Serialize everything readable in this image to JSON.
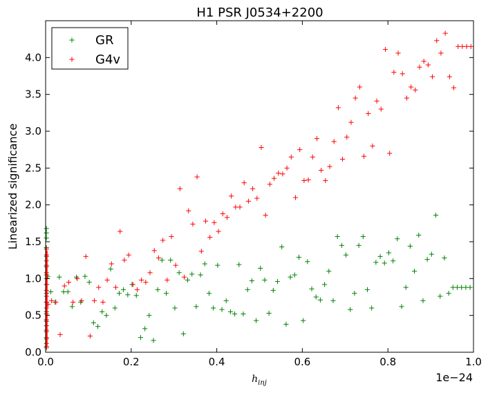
{
  "chart_data": {
    "type": "scatter",
    "title": "H1 PSR J0534+2200",
    "xlabel": "h",
    "xlabel_sub": "inj",
    "ylabel": "Linearized significance",
    "x_offset_label": "1e−24",
    "xlim": [
      0.0,
      1.0
    ],
    "ylim": [
      0.0,
      4.5
    ],
    "x_ticks": [
      "0.0",
      "0.2",
      "0.4",
      "0.6",
      "0.8",
      "1.0"
    ],
    "y_ticks": [
      "0.0",
      "0.5",
      "1.0",
      "1.5",
      "2.0",
      "2.5",
      "3.0",
      "3.5",
      "4.0"
    ],
    "legend_position": "top-left",
    "marker": "plus",
    "series": [
      {
        "name": "GR",
        "color": "#008000",
        "x": [
          0.005,
          0.012,
          0.022,
          0.032,
          0.042,
          0.052,
          0.062,
          0.072,
          0.082,
          0.092,
          0.102,
          0.112,
          0.122,
          0.132,
          0.142,
          0.152,
          0.162,
          0.172,
          0.182,
          0.192,
          0.202,
          0.212,
          0.222,
          0.232,
          0.242,
          0.252,
          0.262,
          0.272,
          0.282,
          0.292,
          0.302,
          0.312,
          0.322,
          0.332,
          0.342,
          0.352,
          0.362,
          0.372,
          0.382,
          0.392,
          0.402,
          0.412,
          0.422,
          0.432,
          0.442,
          0.452,
          0.462,
          0.472,
          0.482,
          0.492,
          0.502,
          0.512,
          0.522,
          0.532,
          0.542,
          0.552,
          0.562,
          0.572,
          0.582,
          0.592,
          0.602,
          0.612,
          0.622,
          0.632,
          0.642,
          0.652,
          0.662,
          0.672,
          0.682,
          0.692,
          0.702,
          0.712,
          0.722,
          0.732,
          0.742,
          0.752,
          0.762,
          0.772,
          0.782,
          0.792,
          0.802,
          0.812,
          0.822,
          0.832,
          0.842,
          0.852,
          0.862,
          0.872,
          0.882,
          0.892,
          0.902,
          0.912,
          0.922,
          0.932,
          0.942,
          0.952,
          0.962,
          0.972,
          0.982,
          0.992
        ],
        "y": [
          1.03,
          0.82,
          0.68,
          1.02,
          0.82,
          0.82,
          0.62,
          1.02,
          0.68,
          1.03,
          0.95,
          0.4,
          0.35,
          0.55,
          0.5,
          1.13,
          0.6,
          0.8,
          0.85,
          0.78,
          0.92,
          0.77,
          0.2,
          0.32,
          0.5,
          0.16,
          0.85,
          1.25,
          0.8,
          1.25,
          0.6,
          1.08,
          0.25,
          0.98,
          1.06,
          0.62,
          1.05,
          1.2,
          0.8,
          0.6,
          1.18,
          0.58,
          0.7,
          0.55,
          0.52,
          1.19,
          0.52,
          0.85,
          0.97,
          0.43,
          1.14,
          0.98,
          0.53,
          0.84,
          0.96,
          1.43,
          0.38,
          1.02,
          1.05,
          1.29,
          0.43,
          1.23,
          0.86,
          0.75,
          0.71,
          0.92,
          1.1,
          0.7,
          1.57,
          1.45,
          1.32,
          0.58,
          0.8,
          1.45,
          1.57,
          0.85,
          0.6,
          1.22,
          1.3,
          1.21,
          1.35,
          1.24,
          1.54,
          0.62,
          0.88,
          1.44,
          1.1,
          1.59,
          0.7,
          1.26,
          1.33,
          1.86,
          0.76,
          1.28,
          0.8,
          0.88,
          0.88,
          0.88,
          0.88,
          0.88
        ]
      },
      {
        "name": "G4v",
        "color": "#ff0000",
        "x": [
          0.006,
          0.014,
          0.024,
          0.034,
          0.044,
          0.054,
          0.064,
          0.074,
          0.084,
          0.094,
          0.104,
          0.114,
          0.124,
          0.134,
          0.144,
          0.154,
          0.164,
          0.174,
          0.184,
          0.194,
          0.204,
          0.214,
          0.224,
          0.234,
          0.244,
          0.254,
          0.264,
          0.274,
          0.284,
          0.294,
          0.304,
          0.314,
          0.324,
          0.334,
          0.344,
          0.354,
          0.364,
          0.374,
          0.384,
          0.394,
          0.404,
          0.414,
          0.424,
          0.434,
          0.444,
          0.454,
          0.464,
          0.474,
          0.484,
          0.494,
          0.504,
          0.514,
          0.524,
          0.534,
          0.544,
          0.554,
          0.564,
          0.574,
          0.584,
          0.594,
          0.604,
          0.614,
          0.624,
          0.634,
          0.644,
          0.654,
          0.664,
          0.674,
          0.684,
          0.694,
          0.704,
          0.714,
          0.724,
          0.734,
          0.744,
          0.754,
          0.764,
          0.774,
          0.784,
          0.794,
          0.804,
          0.814,
          0.824,
          0.834,
          0.844,
          0.854,
          0.864,
          0.874,
          0.884,
          0.894,
          0.904,
          0.914,
          0.924,
          0.934,
          0.944,
          0.954,
          0.964,
          0.974,
          0.984,
          0.994
        ],
        "y": [
          0.65,
          0.7,
          0.68,
          0.24,
          0.9,
          0.95,
          0.68,
          1.0,
          0.7,
          1.3,
          0.22,
          0.7,
          0.88,
          0.68,
          0.98,
          1.2,
          0.88,
          1.64,
          1.25,
          1.32,
          0.92,
          0.85,
          0.98,
          0.95,
          1.08,
          1.38,
          1.28,
          1.52,
          0.98,
          1.57,
          1.18,
          2.22,
          1.02,
          1.92,
          1.74,
          2.38,
          1.37,
          1.78,
          1.56,
          1.76,
          1.64,
          1.88,
          1.83,
          2.12,
          1.97,
          1.97,
          2.3,
          2.05,
          2.22,
          2.09,
          2.78,
          1.86,
          2.28,
          2.36,
          2.43,
          2.42,
          2.5,
          2.65,
          2.1,
          2.75,
          2.33,
          2.34,
          2.65,
          2.9,
          2.47,
          2.33,
          2.52,
          2.86,
          3.32,
          2.62,
          2.92,
          3.12,
          3.45,
          3.6,
          2.66,
          3.24,
          2.8,
          3.41,
          3.3,
          4.11,
          2.7,
          3.8,
          4.06,
          3.78,
          3.45,
          3.6,
          3.56,
          3.87,
          3.95,
          3.9,
          3.74,
          4.23,
          4.06,
          4.33,
          3.74,
          3.59,
          4.15,
          4.15,
          4.15,
          4.15
        ]
      }
    ],
    "cluster_near_zero": {
      "x": 0.002,
      "GR_y": [
        0.08,
        0.18,
        0.3,
        0.42,
        0.55,
        0.68,
        0.8,
        0.92,
        1.05,
        1.18,
        1.3,
        1.42,
        1.55,
        1.62,
        1.68
      ],
      "G4v_y": [
        0.06,
        0.12,
        0.2,
        0.28,
        0.36,
        0.44,
        0.52,
        0.6,
        0.68,
        0.76,
        0.84,
        0.92,
        1.0,
        1.08,
        1.16,
        1.24,
        1.32,
        1.4
      ]
    }
  }
}
